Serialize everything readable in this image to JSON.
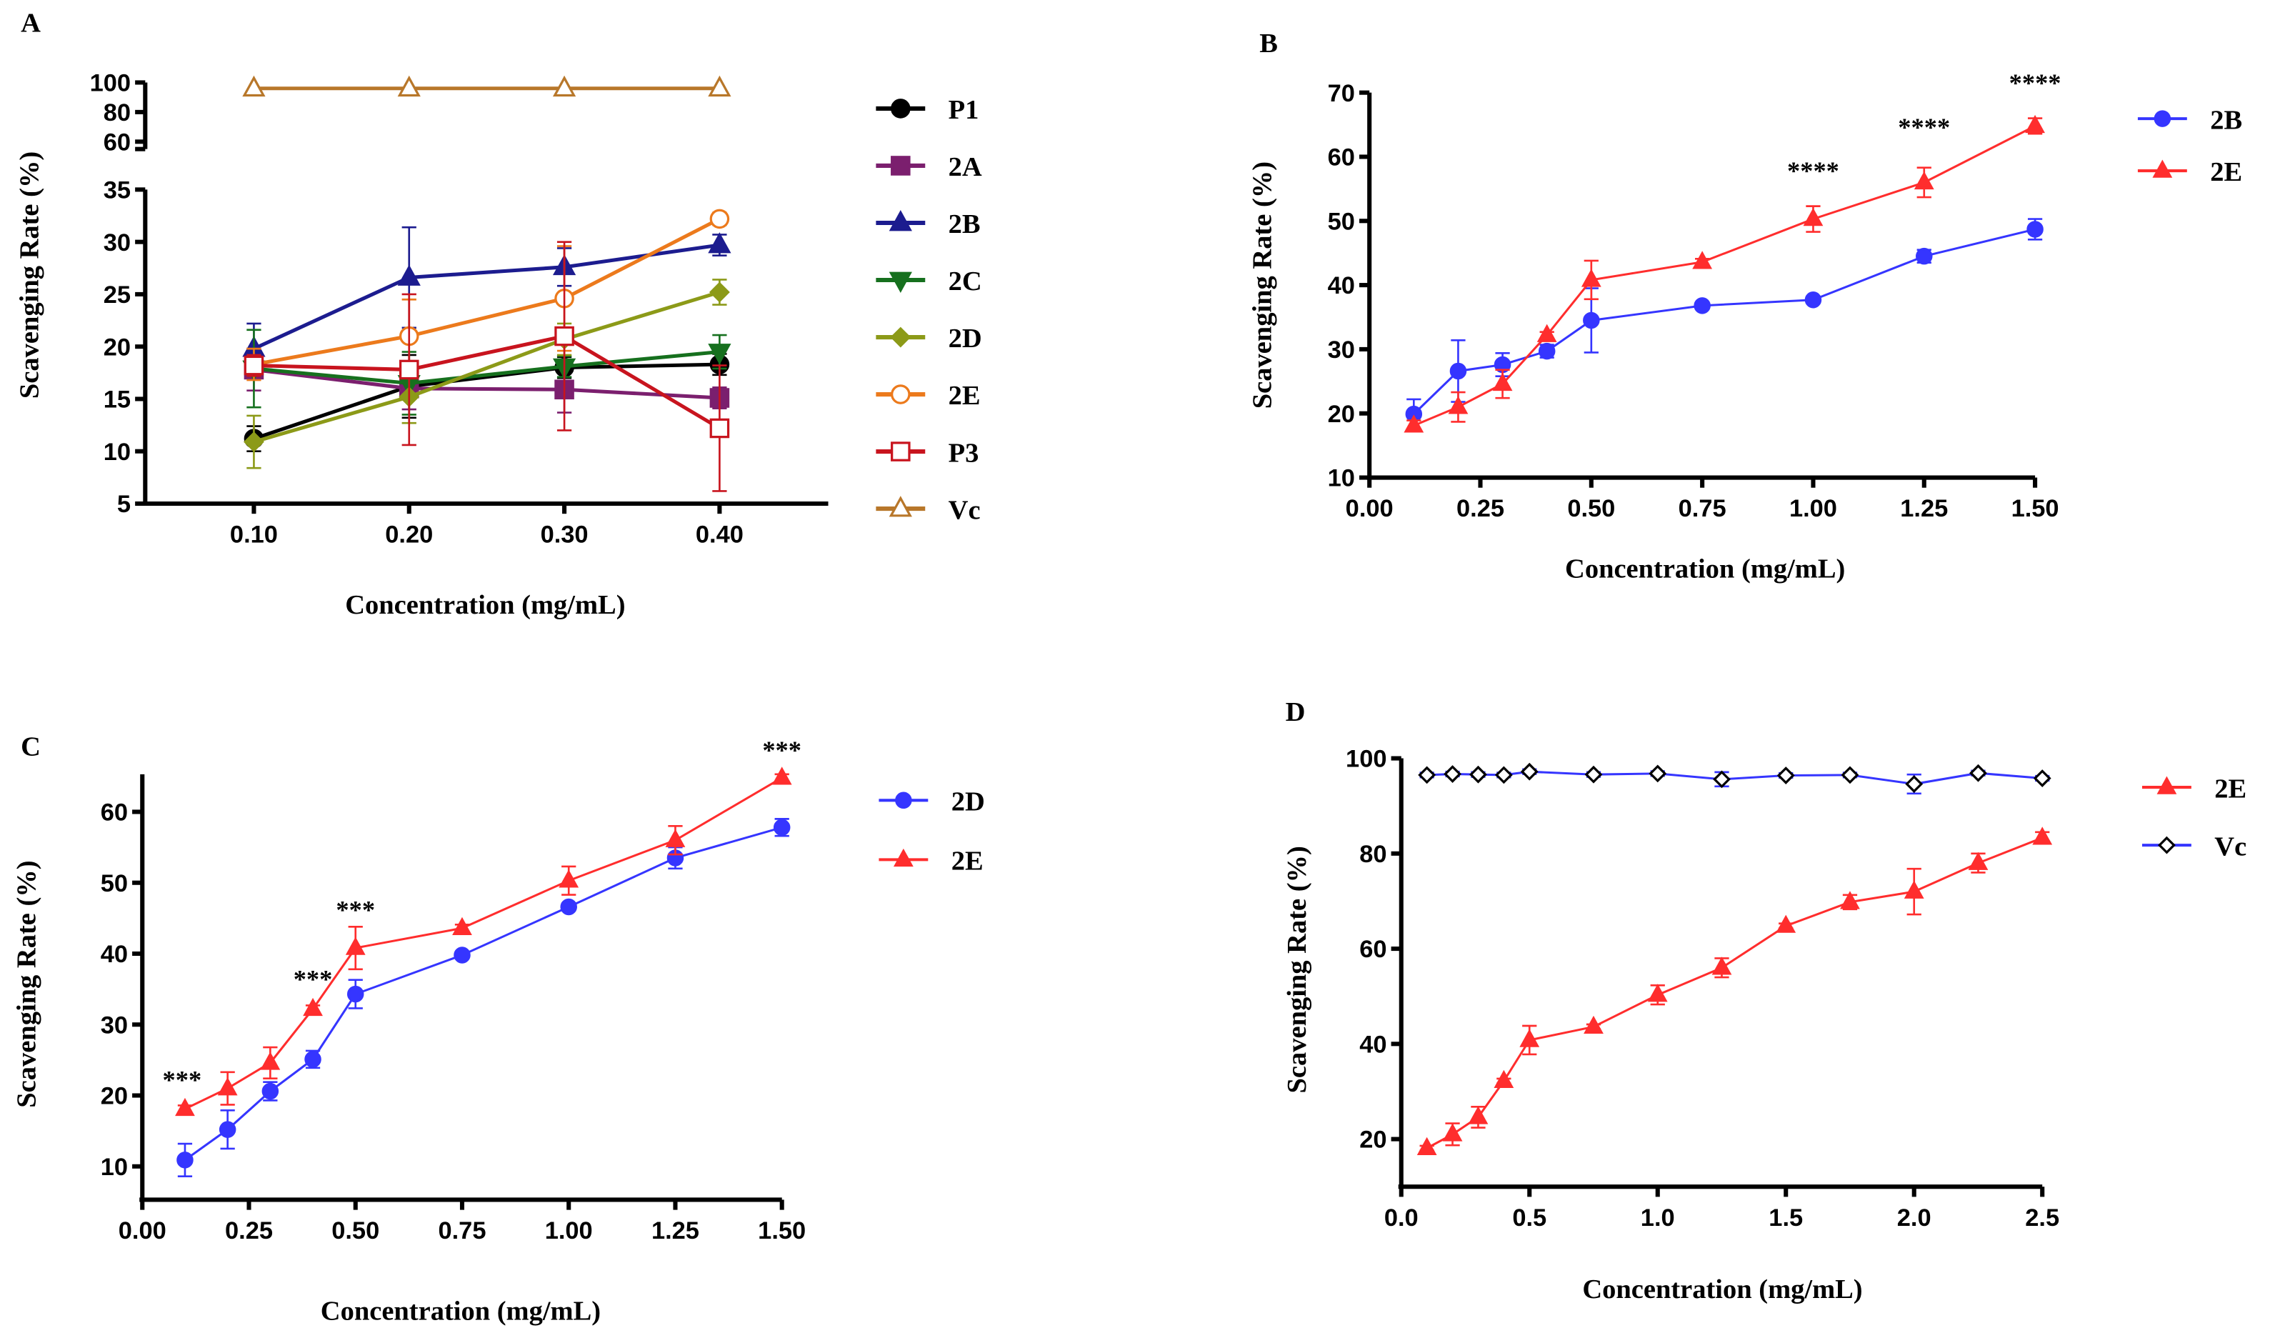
{
  "chart_data": [
    {
      "panel": "A",
      "type": "line",
      "xlabel": "Concentration (mg/mL)",
      "ylabel": "Scavenging Rate (%)",
      "x": [
        0.1,
        0.2,
        0.3,
        0.4
      ],
      "xticks": [
        "0.10",
        "0.20",
        "0.30",
        "0.40"
      ],
      "xtick_values": [
        0.1,
        0.2,
        0.3,
        0.4
      ],
      "xlim": [
        0.03,
        0.47
      ],
      "y_broken_axis": true,
      "ylim_lower": [
        5,
        35
      ],
      "ylim_upper": [
        55,
        100
      ],
      "yticks_lower": [
        5,
        10,
        15,
        20,
        25,
        30,
        35
      ],
      "yticks_upper": [
        60,
        80,
        100
      ],
      "legend_position": "right",
      "series": [
        {
          "name": "P1",
          "color": "#000000",
          "marker": "circle",
          "fill": true,
          "values": [
            11.2,
            16.2,
            18.0,
            18.3
          ],
          "errors": [
            1.2,
            3.0,
            1.0,
            1.0
          ]
        },
        {
          "name": "2A",
          "color": "#7b1f6e",
          "marker": "square",
          "fill": true,
          "values": [
            17.8,
            16.0,
            15.9,
            15.1
          ],
          "errors": [
            2.0,
            2.0,
            2.2,
            1.0
          ]
        },
        {
          "name": "2B",
          "color": "#1c1c8f",
          "marker": "triangle",
          "fill": true,
          "values": [
            19.8,
            26.6,
            27.6,
            29.7
          ],
          "errors": [
            2.4,
            4.8,
            1.8,
            1.0
          ]
        },
        {
          "name": "2C",
          "color": "#16701e",
          "marker": "triangle-down",
          "fill": true,
          "values": [
            17.9,
            16.5,
            18.1,
            19.5
          ],
          "errors": [
            3.7,
            3.0,
            1.0,
            1.6
          ]
        },
        {
          "name": "2D",
          "color": "#8c9a18",
          "marker": "diamond",
          "fill": true,
          "values": [
            10.9,
            15.2,
            20.7,
            25.2
          ],
          "errors": [
            2.5,
            2.5,
            1.5,
            1.2
          ]
        },
        {
          "name": "2E",
          "color": "#ec7a1c",
          "marker": "circle",
          "fill": false,
          "values": [
            18.3,
            21.0,
            24.6,
            32.2
          ],
          "errors": [
            1.5,
            3.5,
            5.0,
            0.6
          ]
        },
        {
          "name": "P3",
          "color": "#c8141e",
          "marker": "square",
          "fill": false,
          "values": [
            18.2,
            17.8,
            21.0,
            12.2
          ],
          "errors": [
            1.0,
            7.2,
            9.0,
            6.0
          ]
        },
        {
          "name": "Vc",
          "color": "#b8772a",
          "marker": "triangle",
          "fill": false,
          "values": [
            96.0,
            96.0,
            96.0,
            96.0
          ],
          "errors": [
            0,
            0,
            0,
            0
          ]
        }
      ],
      "annotations": []
    },
    {
      "panel": "B",
      "type": "line",
      "xlabel": "Concentration (mg/mL)",
      "ylabel": "Scavenging Rate (%)",
      "x": [
        0.1,
        0.2,
        0.3,
        0.4,
        0.5,
        0.75,
        1.0,
        1.25,
        1.5
      ],
      "xticks": [
        "0.00",
        "0.25",
        "0.50",
        "0.75",
        "1.00",
        "1.25",
        "1.50"
      ],
      "xtick_values": [
        0,
        0.25,
        0.5,
        0.75,
        1.0,
        1.25,
        1.5
      ],
      "xlim": [
        0,
        1.5
      ],
      "ylim": [
        10,
        70
      ],
      "yticks": [
        10,
        20,
        30,
        40,
        50,
        60,
        70
      ],
      "legend_position": "top-right",
      "series": [
        {
          "name": "2B",
          "color": "#3535ff",
          "marker": "circle",
          "fill": true,
          "values": [
            19.9,
            26.6,
            27.6,
            29.7,
            34.5,
            36.8,
            37.7,
            44.5,
            48.7
          ],
          "errors": [
            2.3,
            4.8,
            1.8,
            1.0,
            5.0,
            0.5,
            0.5,
            1.0,
            1.6
          ]
        },
        {
          "name": "2E",
          "color": "#ff2d2d",
          "marker": "triangle",
          "fill": true,
          "values": [
            18.1,
            21.0,
            24.6,
            32.2,
            40.8,
            43.6,
            50.3,
            56.0,
            64.8
          ],
          "errors": [
            0.8,
            2.3,
            2.2,
            0.5,
            3.0,
            0.5,
            2.0,
            2.3,
            1.2
          ]
        }
      ],
      "annotations": [
        {
          "text": "****",
          "x": 1.0,
          "y": 56.5
        },
        {
          "text": "****",
          "x": 1.25,
          "y": 63.3
        },
        {
          "text": "****",
          "x": 1.5,
          "y": 70.2
        }
      ]
    },
    {
      "panel": "C",
      "type": "line",
      "xlabel": "Concentration (mg/mL)",
      "ylabel": "Scavenging Rate (%)",
      "x": [
        0.1,
        0.2,
        0.3,
        0.4,
        0.5,
        0.75,
        1.0,
        1.25,
        1.5
      ],
      "xticks": [
        "0.00",
        "0.25",
        "0.50",
        "0.75",
        "1.00",
        "1.25",
        "1.50"
      ],
      "xtick_values": [
        0,
        0.25,
        0.5,
        0.75,
        1.0,
        1.25,
        1.5
      ],
      "xlim": [
        0,
        1.5
      ],
      "ylim": [
        5.3,
        65.3
      ],
      "yticks": [
        10,
        20,
        30,
        40,
        50,
        60
      ],
      "legend_position": "top-right",
      "series": [
        {
          "name": "2D",
          "color": "#3535ff",
          "marker": "circle",
          "fill": true,
          "values": [
            10.9,
            15.2,
            20.6,
            25.1,
            34.3,
            39.8,
            46.6,
            53.5,
            57.8
          ],
          "errors": [
            2.3,
            2.7,
            1.3,
            1.2,
            2.0,
            0.4,
            0.5,
            1.5,
            1.2
          ]
        },
        {
          "name": "2E",
          "color": "#ff2d2d",
          "marker": "triangle",
          "fill": true,
          "values": [
            18.1,
            21.0,
            24.6,
            32.2,
            40.8,
            43.6,
            50.3,
            56.0,
            64.8
          ],
          "errors": [
            0.5,
            2.3,
            2.2,
            0.5,
            3.0,
            0.5,
            2.0,
            2.0,
            0.5
          ]
        }
      ],
      "annotations": [
        {
          "text": "***",
          "x": 0.1,
          "y": 21.0
        },
        {
          "text": "***",
          "x": 0.4,
          "y": 35.2
        },
        {
          "text": "***",
          "x": 0.5,
          "y": 45.0
        },
        {
          "text": "***",
          "x": 1.5,
          "y": 67.5
        }
      ]
    },
    {
      "panel": "D",
      "type": "line",
      "xlabel": "Concentration (mg/mL)",
      "ylabel": "Scavenging Rate (%)",
      "x": [
        0.1,
        0.2,
        0.3,
        0.4,
        0.5,
        0.75,
        1.0,
        1.25,
        1.5,
        1.75,
        2.0,
        2.25,
        2.5
      ],
      "xticks": [
        "0.0",
        "0.5",
        "1.0",
        "1.5",
        "2.0",
        "2.5"
      ],
      "xtick_values": [
        0,
        0.5,
        1.0,
        1.5,
        2.0,
        2.5
      ],
      "xlim": [
        0,
        2.5
      ],
      "ylim": [
        10,
        100
      ],
      "yticks": [
        20,
        40,
        60,
        80,
        100
      ],
      "legend_position": "top-right",
      "series": [
        {
          "name": "2E",
          "color": "#ff2d2d",
          "marker": "triangle",
          "fill": true,
          "values": [
            18.1,
            21.0,
            24.6,
            32.2,
            40.8,
            43.6,
            50.3,
            56.0,
            64.8,
            69.8,
            72.0,
            78.0,
            83.3
          ],
          "errors": [
            0.5,
            2.3,
            2.2,
            0.5,
            3.0,
            0.5,
            2.0,
            2.0,
            0.5,
            1.5,
            4.8,
            2.0,
            1.2
          ]
        },
        {
          "name": "Vc",
          "color": "#3535ff",
          "markerColor": "#000000",
          "marker": "diamond",
          "fill": false,
          "values": [
            96.5,
            96.7,
            96.6,
            96.5,
            97.2,
            96.6,
            96.8,
            95.6,
            96.4,
            96.5,
            94.6,
            96.9,
            95.8
          ],
          "errors": [
            0.5,
            0.5,
            0.5,
            0.5,
            0.5,
            0.5,
            0.5,
            1.5,
            0.5,
            0.5,
            2.0,
            0.5,
            0.5
          ]
        }
      ],
      "annotations": []
    }
  ]
}
